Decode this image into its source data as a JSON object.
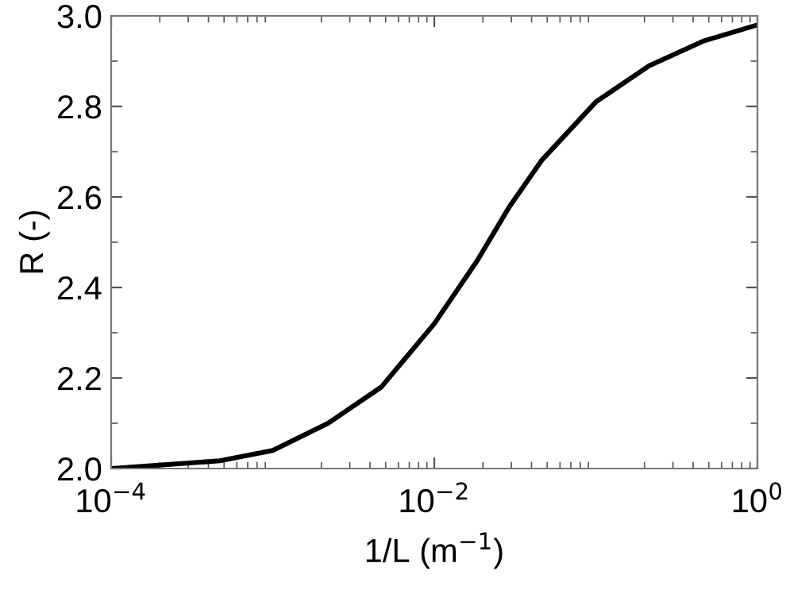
{
  "chart_data": {
    "type": "line",
    "xlabel": "1/L (m$^{−1}$)",
    "ylabel": "R (-)",
    "log": "x",
    "grid": false,
    "x": [
      0.0001,
      0.00047,
      0.001,
      0.0022,
      0.0047,
      0.01,
      0.0185,
      0.029,
      0.046,
      0.1,
      0.214,
      0.46,
      1
    ],
    "series": [
      {
        "color": "#000000",
        "values": [
          2.0,
          2.017,
          2.04,
          2.1,
          2.18,
          2.32,
          2.46,
          2.577,
          2.68,
          2.81,
          2.89,
          2.944,
          2.98
        ]
      }
    ],
    "xlim": [
      0.0001,
      1
    ],
    "xticks": [
      {
        "value": 0.0001,
        "label": "10$^{−4}$"
      },
      {
        "value": 0.01,
        "label": "10$^{−2}$"
      },
      {
        "value": 1,
        "label": "10$^{0}$"
      }
    ],
    "ylim": [
      2.0,
      3.0
    ],
    "yticks": [
      {
        "value": 2.0,
        "label": "2.0"
      },
      {
        "value": 2.2,
        "label": "2.2"
      },
      {
        "value": 2.4,
        "label": "2.4"
      },
      {
        "value": 2.6,
        "label": "2.6"
      },
      {
        "value": 2.8,
        "label": "2.8"
      },
      {
        "value": 3.0,
        "label": "3.0"
      }
    ],
    "marker": "none",
    "line_style": "solid"
  }
}
